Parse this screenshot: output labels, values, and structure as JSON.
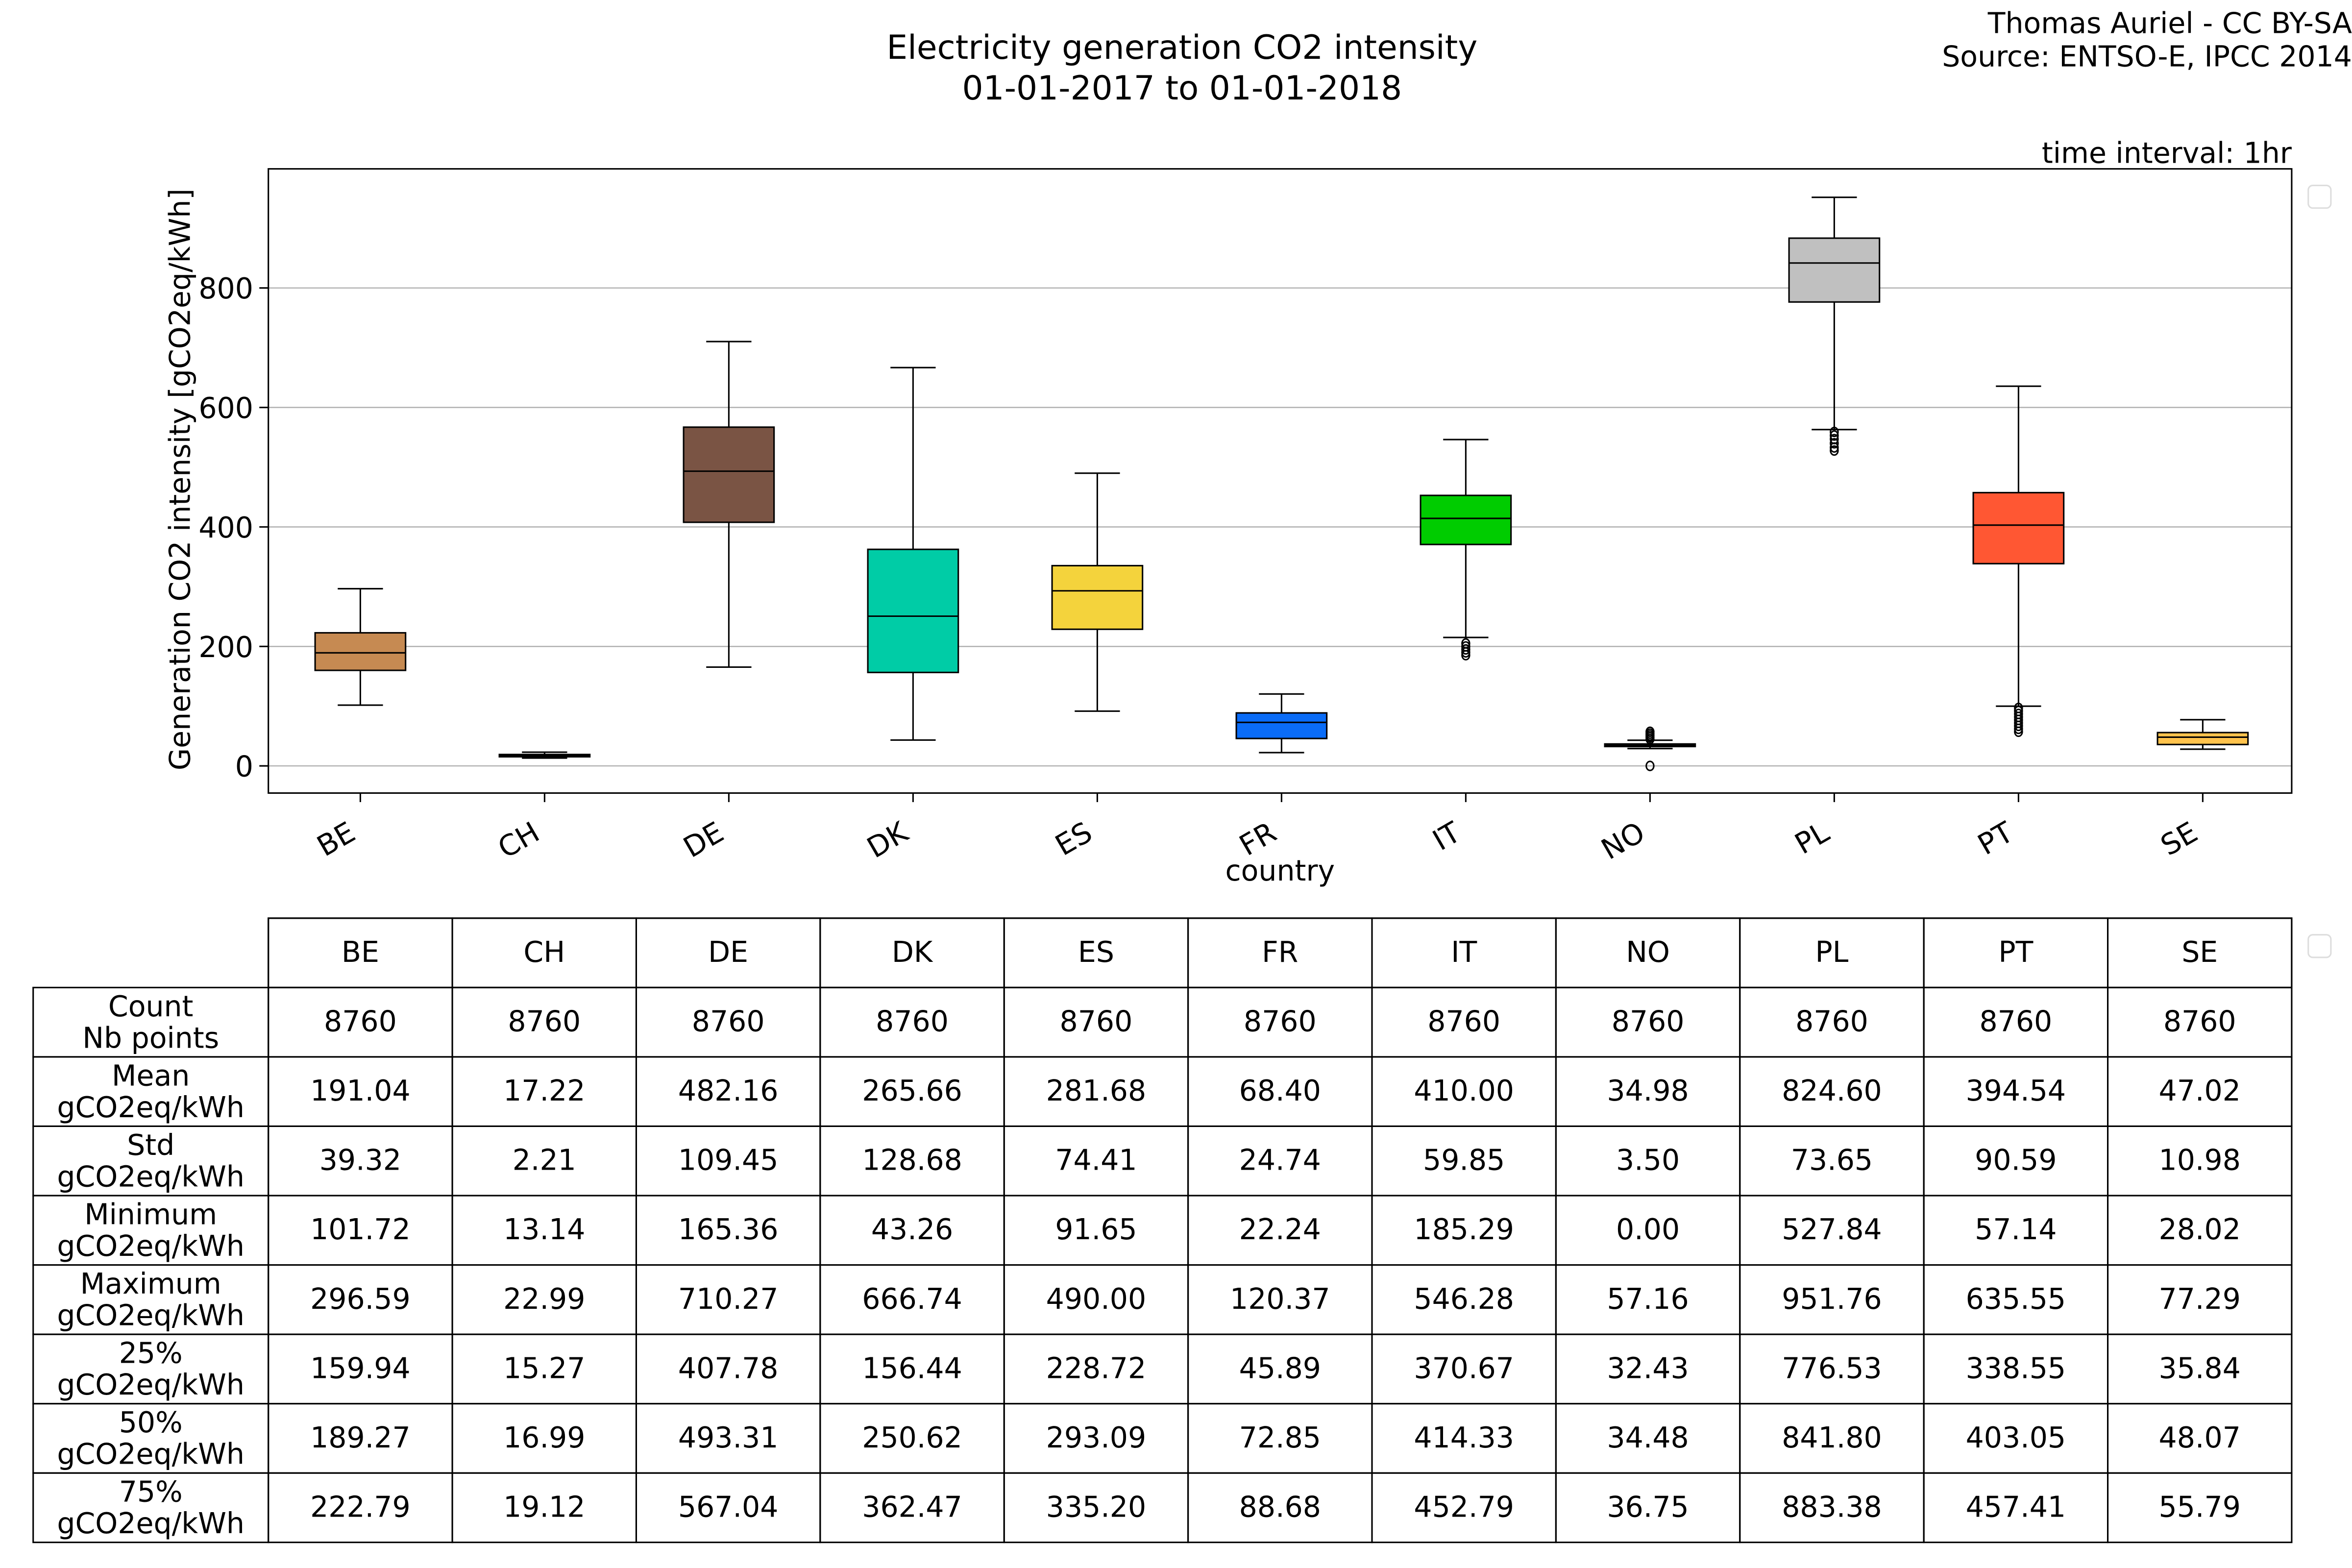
{
  "header": {
    "title_line1": "Electricity generation CO2 intensity",
    "title_line2": "01-01-2017 to 01-01-2018",
    "credit_line1": "Thomas Auriel - CC BY-SA",
    "credit_line2": "Source: ENTSO-E, IPCC 2014",
    "time_interval": "time interval: 1hr"
  },
  "chart_data": {
    "type": "boxplot",
    "title": "Electricity generation CO2 intensity 01-01-2017 to 01-01-2018",
    "xlabel": "country",
    "ylabel": "Generation CO2 intensity [gCO2eq/kWh]",
    "ylim": [
      -45,
      1000
    ],
    "yticks": [
      0,
      200,
      400,
      600,
      800
    ],
    "grid": "horizontal",
    "categories": [
      "BE",
      "CH",
      "DE",
      "DK",
      "ES",
      "FR",
      "IT",
      "NO",
      "PL",
      "PT",
      "SE"
    ],
    "colors": [
      "#c68a52",
      "#1a0012",
      "#7a5444",
      "#00cca6",
      "#f4d33c",
      "#0a6cf7",
      "#00cc00",
      "#1a0012",
      "#c0c0c0",
      "#ff5733",
      "#ffc34d"
    ],
    "boxes": [
      {
        "q1": 159.94,
        "median": 189.27,
        "q3": 222.79,
        "whisker_low": 101.72,
        "whisker_high": 296.59,
        "outliers": []
      },
      {
        "q1": 15.27,
        "median": 16.99,
        "q3": 19.12,
        "whisker_low": 13.14,
        "whisker_high": 22.99,
        "outliers": []
      },
      {
        "q1": 407.78,
        "median": 493.31,
        "q3": 567.04,
        "whisker_low": 165.36,
        "whisker_high": 710.27,
        "outliers": []
      },
      {
        "q1": 156.44,
        "median": 250.62,
        "q3": 362.47,
        "whisker_low": 43.26,
        "whisker_high": 666.74,
        "outliers": []
      },
      {
        "q1": 228.72,
        "median": 293.09,
        "q3": 335.2,
        "whisker_low": 91.65,
        "whisker_high": 490.0,
        "outliers": []
      },
      {
        "q1": 45.89,
        "median": 72.85,
        "q3": 88.68,
        "whisker_low": 22.24,
        "whisker_high": 120.37,
        "outliers": []
      },
      {
        "q1": 370.67,
        "median": 414.33,
        "q3": 452.79,
        "whisker_low": 215,
        "whisker_high": 546.28,
        "outliers": [
          185.29,
          190,
          195,
          200,
          205
        ]
      },
      {
        "q1": 32.43,
        "median": 34.48,
        "q3": 36.75,
        "whisker_low": 29,
        "whisker_high": 43,
        "outliers": [
          0.0,
          45,
          48,
          51,
          54,
          57.16
        ]
      },
      {
        "q1": 776.53,
        "median": 841.8,
        "q3": 883.38,
        "whisker_low": 563,
        "whisker_high": 951.76,
        "outliers": [
          527.84,
          533,
          540,
          547,
          553,
          559
        ]
      },
      {
        "q1": 338.55,
        "median": 403.05,
        "q3": 457.41,
        "whisker_low": 100,
        "whisker_high": 635.55,
        "outliers": [
          57.14,
          62,
          67,
          72,
          77,
          82,
          87,
          92,
          97
        ]
      },
      {
        "q1": 35.84,
        "median": 48.07,
        "q3": 55.79,
        "whisker_low": 28.02,
        "whisker_high": 77.29,
        "outliers": []
      }
    ]
  },
  "table": {
    "columns": [
      "BE",
      "CH",
      "DE",
      "DK",
      "ES",
      "FR",
      "IT",
      "NO",
      "PL",
      "PT",
      "SE"
    ],
    "rows": [
      {
        "label1": "Count",
        "label2": "Nb points",
        "values": [
          "8760",
          "8760",
          "8760",
          "8760",
          "8760",
          "8760",
          "8760",
          "8760",
          "8760",
          "8760",
          "8760"
        ]
      },
      {
        "label1": "Mean",
        "label2": "gCO2eq/kWh",
        "values": [
          "191.04",
          "17.22",
          "482.16",
          "265.66",
          "281.68",
          "68.40",
          "410.00",
          "34.98",
          "824.60",
          "394.54",
          "47.02"
        ]
      },
      {
        "label1": "Std",
        "label2": "gCO2eq/kWh",
        "values": [
          "39.32",
          "2.21",
          "109.45",
          "128.68",
          "74.41",
          "24.74",
          "59.85",
          "3.50",
          "73.65",
          "90.59",
          "10.98"
        ]
      },
      {
        "label1": "Minimum",
        "label2": "gCO2eq/kWh",
        "values": [
          "101.72",
          "13.14",
          "165.36",
          "43.26",
          "91.65",
          "22.24",
          "185.29",
          "0.00",
          "527.84",
          "57.14",
          "28.02"
        ]
      },
      {
        "label1": "Maximum",
        "label2": "gCO2eq/kWh",
        "values": [
          "296.59",
          "22.99",
          "710.27",
          "666.74",
          "490.00",
          "120.37",
          "546.28",
          "57.16",
          "951.76",
          "635.55",
          "77.29"
        ]
      },
      {
        "label1": "25%",
        "label2": "gCO2eq/kWh",
        "values": [
          "159.94",
          "15.27",
          "407.78",
          "156.44",
          "228.72",
          "45.89",
          "370.67",
          "32.43",
          "776.53",
          "338.55",
          "35.84"
        ]
      },
      {
        "label1": "50%",
        "label2": "gCO2eq/kWh",
        "values": [
          "189.27",
          "16.99",
          "493.31",
          "250.62",
          "293.09",
          "72.85",
          "414.33",
          "34.48",
          "841.80",
          "403.05",
          "48.07"
        ]
      },
      {
        "label1": "75%",
        "label2": "gCO2eq/kWh",
        "values": [
          "222.79",
          "19.12",
          "567.04",
          "362.47",
          "335.20",
          "88.68",
          "452.79",
          "36.75",
          "883.38",
          "457.41",
          "55.79"
        ]
      }
    ]
  }
}
